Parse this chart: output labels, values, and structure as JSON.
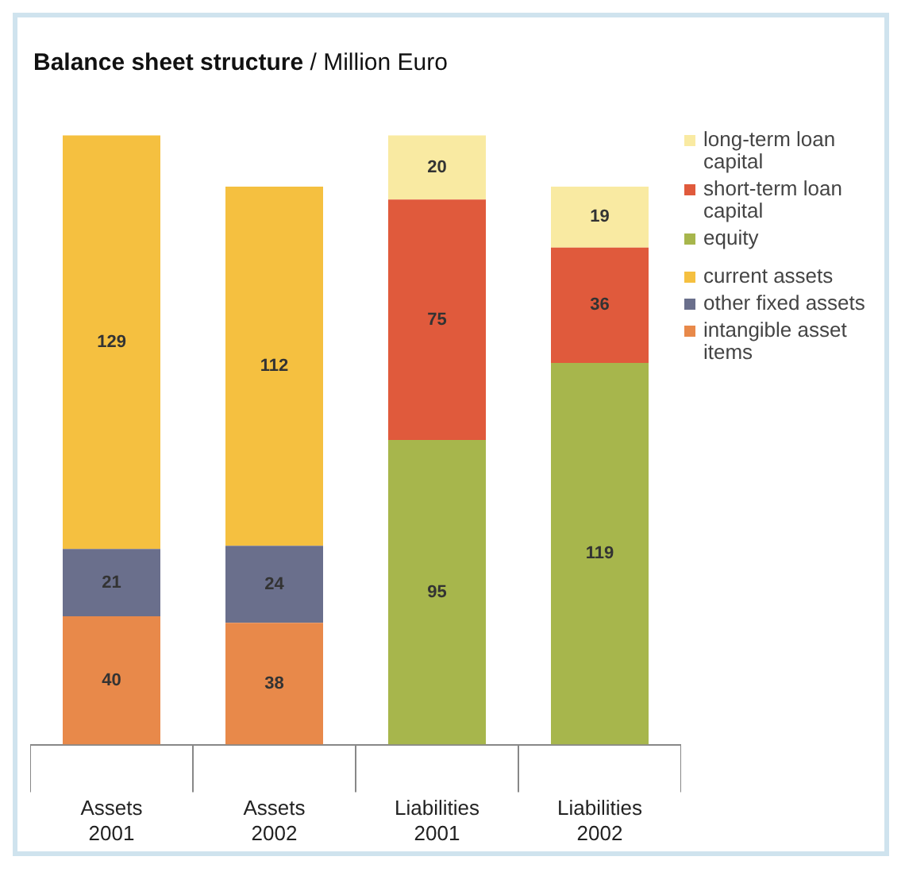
{
  "chart_data": {
    "type": "bar",
    "title": "Balance sheet structure",
    "subtitle": "/ Million Euro",
    "categories": [
      "Assets 2001",
      "Assets 2002",
      "Liabilities 2001",
      "Liabilities 2002"
    ],
    "stacked": true,
    "data_labels": true,
    "tick_labels": "x",
    "legend": "right",
    "grid": false,
    "series": [
      {
        "name": "intangible asset items",
        "color": "#e8894a",
        "values": [
          40,
          38,
          null,
          null
        ]
      },
      {
        "name": "other fixed assets",
        "color": "#6a6f8c",
        "values": [
          21,
          24,
          null,
          null
        ]
      },
      {
        "name": "current assets",
        "color": "#f5c040",
        "values": [
          129,
          112,
          null,
          null
        ]
      },
      {
        "name": "equity",
        "color": "#a7b64c",
        "values": [
          null,
          null,
          95,
          119
        ]
      },
      {
        "name": "short-term loan capital",
        "color": "#e05a3c",
        "values": [
          null,
          null,
          75,
          36
        ]
      },
      {
        "name": "long-term loan capital",
        "color": "#f9eaa2",
        "values": [
          null,
          null,
          20,
          19
        ]
      }
    ]
  }
}
